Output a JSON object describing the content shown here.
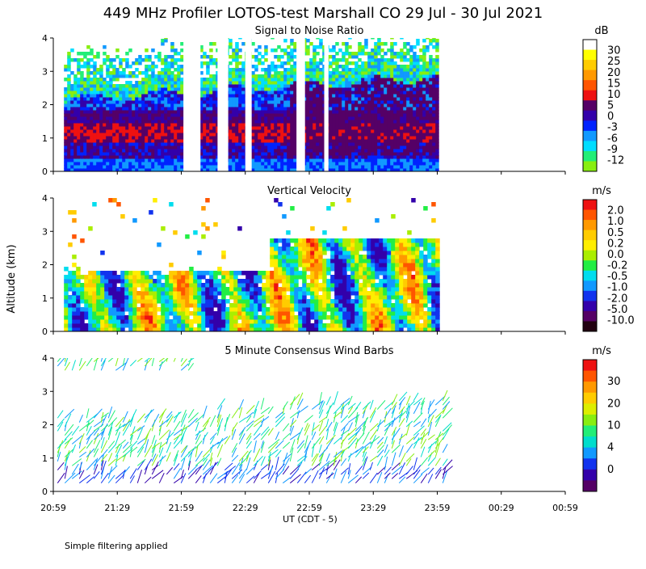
{
  "title": "449 MHz Profiler LOTOS-test Marshall CO 29 Jul - 30 Jul 2021",
  "ylabel": "Altitude (km)",
  "xlabel": "UT  (CDT - 5)",
  "note": "Simple filtering applied",
  "x_ticks": [
    "20:59",
    "21:29",
    "21:59",
    "22:29",
    "22:59",
    "23:29",
    "23:59",
    "00:29",
    "00:59"
  ],
  "chart_data": [
    {
      "type": "heatmap",
      "title": "Signal to Noise Ratio",
      "unit": "dB",
      "xlim": [
        "20:59",
        "00:59"
      ],
      "ylim": [
        0,
        4
      ],
      "y_ticks": [
        "0",
        "1",
        "2",
        "3",
        "4"
      ],
      "data_extent": [
        "21:04",
        "23:59"
      ],
      "data_gaps": [
        [
          "22:00",
          "22:08"
        ],
        [
          "22:16",
          "22:21"
        ],
        [
          "22:29",
          "22:32"
        ],
        [
          "22:53",
          "22:57"
        ],
        [
          "23:06",
          "23:08"
        ]
      ],
      "colorbar": {
        "labels": [
          "30",
          "25",
          "20",
          "15",
          "10",
          "5",
          "0",
          "-3",
          "-6",
          "-9",
          "-12"
        ],
        "colors": [
          "#ffffff",
          "#ffff00",
          "#ffcc00",
          "#ff9900",
          "#ff5500",
          "#ee1111",
          "#550066",
          "#3300aa",
          "#0022ff",
          "#1199ff",
          "#00ddff",
          "#22ee77",
          "#88ee11"
        ]
      }
    },
    {
      "type": "heatmap",
      "title": "Vertical Velocity",
      "unit": "m/s",
      "xlim": [
        "20:59",
        "00:59"
      ],
      "ylim": [
        0,
        4
      ],
      "y_ticks": [
        "0",
        "1",
        "2",
        "3",
        "4"
      ],
      "data_extent": [
        "21:04",
        "23:59"
      ],
      "colorbar": {
        "labels": [
          "2.0",
          "1.0",
          "0.5",
          "0.2",
          "0.0",
          "-0.2",
          "-0.5",
          "-1.0",
          "-2.0",
          "-5.0",
          "-10.0"
        ],
        "colors": [
          "#ee1111",
          "#ff5500",
          "#ff9900",
          "#ffcc00",
          "#ffee00",
          "#aaee00",
          "#22ee44",
          "#00ddee",
          "#1199ff",
          "#1133ee",
          "#3300aa",
          "#550066",
          "#220011"
        ]
      }
    },
    {
      "type": "scatter",
      "title": "5 Minute Consensus Wind Barbs",
      "unit": "m/s",
      "xlim": [
        "20:59",
        "00:59"
      ],
      "ylim": [
        0,
        4
      ],
      "y_ticks": [
        "0",
        "1",
        "2",
        "3",
        "4"
      ],
      "data_extent": [
        "21:01",
        "24:04"
      ],
      "colorbar": {
        "labels": [
          "30",
          "20",
          "10",
          "4",
          "0"
        ],
        "colors": [
          "#ee1111",
          "#ff5500",
          "#ff9900",
          "#ffcc00",
          "#ddee00",
          "#88ee11",
          "#22ee77",
          "#00ddcc",
          "#1199ff",
          "#1133ee",
          "#3300aa",
          "#550066"
        ]
      }
    }
  ]
}
